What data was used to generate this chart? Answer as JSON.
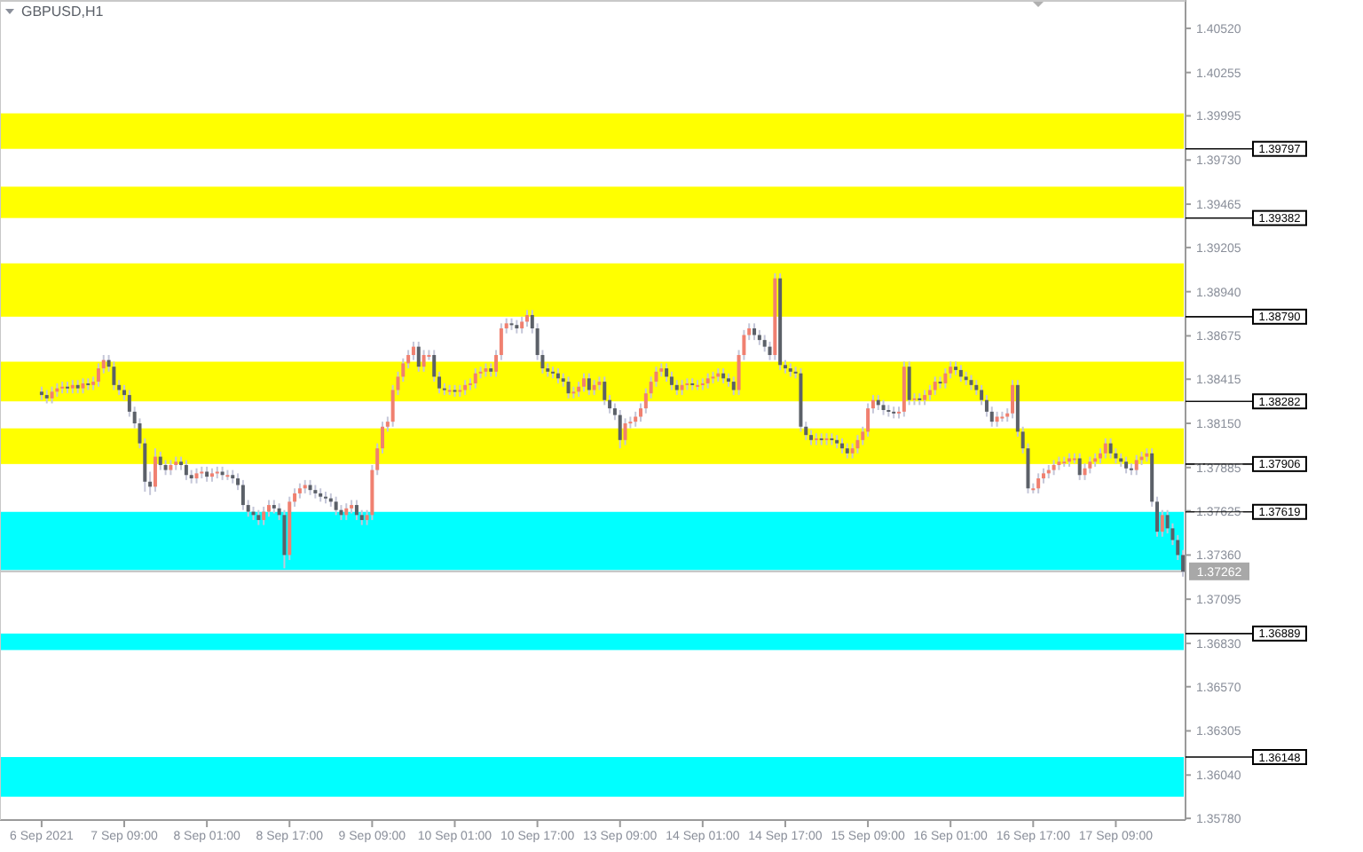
{
  "chart_data": {
    "type": "candlestick",
    "title": "GBPUSD,H1",
    "categories": [
      "6 Sep 2021",
      null,
      null,
      null,
      null,
      null,
      null,
      null,
      null,
      null,
      null,
      null,
      null,
      null,
      null,
      null,
      "7 Sep 09:00",
      null,
      null,
      null,
      null,
      null,
      null,
      null,
      null,
      null,
      null,
      null,
      null,
      null,
      null,
      null,
      "8 Sep 01:00",
      null,
      null,
      null,
      null,
      null,
      null,
      null,
      null,
      null,
      null,
      null,
      null,
      null,
      null,
      null,
      "8 Sep 17:00",
      null,
      null,
      null,
      null,
      null,
      null,
      null,
      null,
      null,
      null,
      null,
      null,
      null,
      null,
      null,
      "9 Sep 09:00",
      null,
      null,
      null,
      null,
      null,
      null,
      null,
      null,
      null,
      null,
      null,
      null,
      null,
      null,
      null,
      "10 Sep 01:00",
      null,
      null,
      null,
      null,
      null,
      null,
      null,
      null,
      null,
      null,
      null,
      null,
      null,
      null,
      null,
      "10 Sep 17:00",
      null,
      null,
      null,
      null,
      null,
      null,
      null,
      null,
      null,
      null,
      null,
      null,
      null,
      null,
      null,
      "13 Sep 09:00",
      null,
      null,
      null,
      null,
      null,
      null,
      null,
      null,
      null,
      null,
      null,
      null,
      null,
      null,
      null,
      "14 Sep 01:00",
      null,
      null,
      null,
      null,
      null,
      null,
      null,
      null,
      null,
      null,
      null,
      null,
      null,
      null,
      null,
      "14 Sep 17:00",
      null,
      null,
      null,
      null,
      null,
      null,
      null,
      null,
      null,
      null,
      null,
      null,
      null,
      null,
      null,
      "15 Sep 09:00",
      null,
      null,
      null,
      null,
      null,
      null,
      null,
      null,
      null,
      null,
      null,
      null,
      null,
      null,
      null,
      "16 Sep 01:00",
      null,
      null,
      null,
      null,
      null,
      null,
      null,
      null,
      null,
      null,
      null,
      null,
      null,
      null,
      null,
      "16 Sep 17:00",
      null,
      null,
      null,
      null,
      null,
      null,
      null,
      null,
      null,
      null,
      null,
      null,
      null,
      null,
      null,
      "17 Sep 09:00",
      null,
      null,
      null,
      null,
      null,
      null,
      null,
      null,
      null,
      null,
      null,
      null,
      null
    ],
    "ohlc": [
      [
        1.3834,
        1.3837,
        1.3829,
        1.3832
      ],
      [
        1.3832,
        1.3835,
        1.3827,
        1.383
      ],
      [
        1.383,
        1.3837,
        1.3827,
        1.3834
      ],
      [
        1.3834,
        1.3839,
        1.3831,
        1.3836
      ],
      [
        1.3836,
        1.384,
        1.3833,
        1.3837
      ],
      [
        1.3837,
        1.384,
        1.3833,
        1.3836
      ],
      [
        1.3836,
        1.3841,
        1.3833,
        1.3838
      ],
      [
        1.3838,
        1.3841,
        1.3833,
        1.3836
      ],
      [
        1.3836,
        1.3842,
        1.3833,
        1.3839
      ],
      [
        1.3839,
        1.3842,
        1.3835,
        1.3838
      ],
      [
        1.3838,
        1.3843,
        1.3835,
        1.384
      ],
      [
        1.384,
        1.3851,
        1.3837,
        1.3848
      ],
      [
        1.3848,
        1.3856,
        1.3845,
        1.3853
      ],
      [
        1.3853,
        1.3856,
        1.3846,
        1.3849
      ],
      [
        1.3849,
        1.3852,
        1.3835,
        1.3838
      ],
      [
        1.3838,
        1.3841,
        1.3832,
        1.3835
      ],
      [
        1.3835,
        1.3838,
        1.3829,
        1.3832
      ],
      [
        1.3832,
        1.3835,
        1.3819,
        1.3822
      ],
      [
        1.3822,
        1.3825,
        1.3812,
        1.3815
      ],
      [
        1.3815,
        1.3818,
        1.38,
        1.3803
      ],
      [
        1.3803,
        1.3806,
        1.3774,
        1.378
      ],
      [
        1.378,
        1.3786,
        1.3772,
        1.3777
      ],
      [
        1.3777,
        1.38,
        1.3774,
        1.3795
      ],
      [
        1.3795,
        1.3798,
        1.3787,
        1.379
      ],
      [
        1.379,
        1.3793,
        1.3784,
        1.3787
      ],
      [
        1.3787,
        1.3793,
        1.3784,
        1.379
      ],
      [
        1.379,
        1.3795,
        1.3787,
        1.3792
      ],
      [
        1.3792,
        1.3795,
        1.3787,
        1.379
      ],
      [
        1.379,
        1.3793,
        1.3781,
        1.3784
      ],
      [
        1.3784,
        1.3787,
        1.3779,
        1.3782
      ],
      [
        1.3782,
        1.3788,
        1.3779,
        1.3785
      ],
      [
        1.3785,
        1.3789,
        1.3782,
        1.3786
      ],
      [
        1.3786,
        1.3789,
        1.378,
        1.3783
      ],
      [
        1.3783,
        1.3788,
        1.378,
        1.3785
      ],
      [
        1.3785,
        1.3789,
        1.3782,
        1.3786
      ],
      [
        1.3786,
        1.3789,
        1.3781,
        1.3784
      ],
      [
        1.3784,
        1.3787,
        1.3781,
        1.3784
      ],
      [
        1.3784,
        1.3787,
        1.3779,
        1.3782
      ],
      [
        1.3782,
        1.3785,
        1.3775,
        1.3778
      ],
      [
        1.3778,
        1.3781,
        1.3763,
        1.3766
      ],
      [
        1.3766,
        1.3769,
        1.3759,
        1.3762
      ],
      [
        1.3762,
        1.3765,
        1.3757,
        1.376
      ],
      [
        1.376,
        1.3763,
        1.3754,
        1.3757
      ],
      [
        1.3757,
        1.3765,
        1.3754,
        1.3762
      ],
      [
        1.3762,
        1.3769,
        1.3759,
        1.3766
      ],
      [
        1.3766,
        1.3769,
        1.3761,
        1.3764
      ],
      [
        1.3764,
        1.3767,
        1.3757,
        1.376
      ],
      [
        1.376,
        1.3763,
        1.3728,
        1.3736
      ],
      [
        1.3736,
        1.3771,
        1.3733,
        1.3768
      ],
      [
        1.3768,
        1.3776,
        1.3765,
        1.3773
      ],
      [
        1.3773,
        1.3779,
        1.377,
        1.3776
      ],
      [
        1.3776,
        1.3781,
        1.3773,
        1.3778
      ],
      [
        1.3778,
        1.3781,
        1.3772,
        1.3775
      ],
      [
        1.3775,
        1.3778,
        1.377,
        1.3773
      ],
      [
        1.3773,
        1.3776,
        1.3768,
        1.3771
      ],
      [
        1.3771,
        1.3774,
        1.3767,
        1.377
      ],
      [
        1.377,
        1.3773,
        1.3765,
        1.3768
      ],
      [
        1.3768,
        1.3771,
        1.376,
        1.3763
      ],
      [
        1.3763,
        1.3766,
        1.3757,
        1.376
      ],
      [
        1.376,
        1.3767,
        1.3757,
        1.3764
      ],
      [
        1.3764,
        1.3769,
        1.3761,
        1.3766
      ],
      [
        1.3766,
        1.3769,
        1.3757,
        1.376
      ],
      [
        1.376,
        1.3763,
        1.3754,
        1.3757
      ],
      [
        1.3757,
        1.3763,
        1.3754,
        1.376
      ],
      [
        1.376,
        1.379,
        1.3757,
        1.3787
      ],
      [
        1.3787,
        1.3803,
        1.3784,
        1.38
      ],
      [
        1.38,
        1.3816,
        1.3797,
        1.3813
      ],
      [
        1.3813,
        1.3819,
        1.381,
        1.3816
      ],
      [
        1.3816,
        1.3838,
        1.3813,
        1.3835
      ],
      [
        1.3835,
        1.3846,
        1.3832,
        1.3843
      ],
      [
        1.3843,
        1.3854,
        1.384,
        1.3851
      ],
      [
        1.3851,
        1.3859,
        1.3848,
        1.3856
      ],
      [
        1.3856,
        1.3864,
        1.3853,
        1.3861
      ],
      [
        1.3861,
        1.3864,
        1.3846,
        1.3849
      ],
      [
        1.3849,
        1.3859,
        1.3846,
        1.3856
      ],
      [
        1.3856,
        1.3859,
        1.3853,
        1.3856
      ],
      [
        1.3856,
        1.3859,
        1.384,
        1.3843
      ],
      [
        1.3843,
        1.3846,
        1.3833,
        1.3836
      ],
      [
        1.3836,
        1.3839,
        1.3832,
        1.3835
      ],
      [
        1.3835,
        1.3838,
        1.3832,
        1.3835
      ],
      [
        1.3835,
        1.3838,
        1.3831,
        1.3834
      ],
      [
        1.3834,
        1.3838,
        1.3831,
        1.3835
      ],
      [
        1.3835,
        1.3841,
        1.3832,
        1.3838
      ],
      [
        1.3838,
        1.3842,
        1.3835,
        1.3839
      ],
      [
        1.3839,
        1.3848,
        1.3836,
        1.3845
      ],
      [
        1.3845,
        1.3849,
        1.3842,
        1.3846
      ],
      [
        1.3846,
        1.3851,
        1.3843,
        1.3848
      ],
      [
        1.3848,
        1.3851,
        1.3843,
        1.3846
      ],
      [
        1.3846,
        1.3859,
        1.3843,
        1.3856
      ],
      [
        1.3856,
        1.3875,
        1.3853,
        1.3872
      ],
      [
        1.3872,
        1.3878,
        1.3869,
        1.3875
      ],
      [
        1.3875,
        1.3878,
        1.3871,
        1.3874
      ],
      [
        1.3874,
        1.3877,
        1.3869,
        1.3872
      ],
      [
        1.3872,
        1.3879,
        1.3869,
        1.3876
      ],
      [
        1.3876,
        1.3883,
        1.3873,
        1.388
      ],
      [
        1.388,
        1.3883,
        1.3869,
        1.3872
      ],
      [
        1.3872,
        1.3875,
        1.3853,
        1.3856
      ],
      [
        1.3856,
        1.3859,
        1.3845,
        1.3848
      ],
      [
        1.3848,
        1.3851,
        1.3843,
        1.3846
      ],
      [
        1.3846,
        1.3849,
        1.3842,
        1.3845
      ],
      [
        1.3845,
        1.3848,
        1.3839,
        1.3842
      ],
      [
        1.3842,
        1.3845,
        1.3837,
        1.384
      ],
      [
        1.384,
        1.3843,
        1.383,
        1.3833
      ],
      [
        1.3833,
        1.3837,
        1.383,
        1.3834
      ],
      [
        1.3834,
        1.384,
        1.3831,
        1.3837
      ],
      [
        1.3837,
        1.3845,
        1.3834,
        1.3842
      ],
      [
        1.3842,
        1.3845,
        1.3832,
        1.3835
      ],
      [
        1.3835,
        1.3841,
        1.3832,
        1.3838
      ],
      [
        1.3838,
        1.3843,
        1.3835,
        1.384
      ],
      [
        1.384,
        1.3843,
        1.3826,
        1.3829
      ],
      [
        1.3829,
        1.3832,
        1.3821,
        1.3824
      ],
      [
        1.3824,
        1.3827,
        1.3817,
        1.382
      ],
      [
        1.382,
        1.3823,
        1.38,
        1.3805
      ],
      [
        1.3805,
        1.3818,
        1.3802,
        1.3815
      ],
      [
        1.3815,
        1.3819,
        1.3812,
        1.3816
      ],
      [
        1.3816,
        1.3822,
        1.3813,
        1.3819
      ],
      [
        1.3819,
        1.3827,
        1.3816,
        1.3824
      ],
      [
        1.3824,
        1.3836,
        1.3821,
        1.3833
      ],
      [
        1.3833,
        1.3843,
        1.383,
        1.384
      ],
      [
        1.384,
        1.3849,
        1.3837,
        1.3846
      ],
      [
        1.3846,
        1.3851,
        1.3843,
        1.3848
      ],
      [
        1.3848,
        1.3851,
        1.384,
        1.3843
      ],
      [
        1.3843,
        1.3846,
        1.3835,
        1.3838
      ],
      [
        1.3838,
        1.3841,
        1.3832,
        1.3835
      ],
      [
        1.3835,
        1.3841,
        1.3832,
        1.3838
      ],
      [
        1.3838,
        1.3842,
        1.3835,
        1.3839
      ],
      [
        1.3839,
        1.3842,
        1.3835,
        1.3838
      ],
      [
        1.3838,
        1.3841,
        1.3835,
        1.3838
      ],
      [
        1.3838,
        1.3842,
        1.3835,
        1.3839
      ],
      [
        1.3839,
        1.3845,
        1.3836,
        1.3842
      ],
      [
        1.3842,
        1.3846,
        1.3839,
        1.3843
      ],
      [
        1.3843,
        1.3848,
        1.384,
        1.3845
      ],
      [
        1.3845,
        1.3848,
        1.3839,
        1.3842
      ],
      [
        1.3842,
        1.3845,
        1.3837,
        1.384
      ],
      [
        1.384,
        1.3843,
        1.3832,
        1.3835
      ],
      [
        1.3835,
        1.3859,
        1.3832,
        1.3856
      ],
      [
        1.3856,
        1.3871,
        1.3853,
        1.3868
      ],
      [
        1.3868,
        1.3875,
        1.3865,
        1.3872
      ],
      [
        1.3872,
        1.3875,
        1.3865,
        1.3868
      ],
      [
        1.3868,
        1.3871,
        1.3862,
        1.3865
      ],
      [
        1.3865,
        1.3868,
        1.3858,
        1.3861
      ],
      [
        1.3861,
        1.3864,
        1.3853,
        1.3856
      ],
      [
        1.3856,
        1.3905,
        1.3853,
        1.3902
      ],
      [
        1.3902,
        1.3905,
        1.3847,
        1.385
      ],
      [
        1.385,
        1.3853,
        1.3845,
        1.3848
      ],
      [
        1.3848,
        1.3851,
        1.3843,
        1.3846
      ],
      [
        1.3846,
        1.3849,
        1.3842,
        1.3845
      ],
      [
        1.3845,
        1.3848,
        1.381,
        1.3813
      ],
      [
        1.3813,
        1.3816,
        1.3805,
        1.3808
      ],
      [
        1.3808,
        1.3811,
        1.3802,
        1.3805
      ],
      [
        1.3805,
        1.3809,
        1.3802,
        1.3806
      ],
      [
        1.3806,
        1.3809,
        1.3802,
        1.3805
      ],
      [
        1.3805,
        1.3809,
        1.3802,
        1.3806
      ],
      [
        1.3806,
        1.3809,
        1.3802,
        1.3805
      ],
      [
        1.3805,
        1.3808,
        1.38,
        1.3803
      ],
      [
        1.3803,
        1.3806,
        1.3797,
        1.38
      ],
      [
        1.38,
        1.3803,
        1.3794,
        1.3797
      ],
      [
        1.3797,
        1.3803,
        1.3794,
        1.38
      ],
      [
        1.38,
        1.3808,
        1.3797,
        1.3805
      ],
      [
        1.3805,
        1.3813,
        1.3802,
        1.381
      ],
      [
        1.381,
        1.3827,
        1.3807,
        1.3824
      ],
      [
        1.3824,
        1.3832,
        1.3821,
        1.3829
      ],
      [
        1.3829,
        1.3832,
        1.3823,
        1.3826
      ],
      [
        1.3826,
        1.3829,
        1.382,
        1.3823
      ],
      [
        1.3823,
        1.3826,
        1.3819,
        1.3822
      ],
      [
        1.3822,
        1.3825,
        1.3818,
        1.3821
      ],
      [
        1.3821,
        1.3825,
        1.3818,
        1.3822
      ],
      [
        1.3822,
        1.3852,
        1.3819,
        1.3849
      ],
      [
        1.3849,
        1.3852,
        1.3826,
        1.3829
      ],
      [
        1.3829,
        1.3833,
        1.3826,
        1.383
      ],
      [
        1.383,
        1.3833,
        1.3826,
        1.3829
      ],
      [
        1.3829,
        1.3835,
        1.3826,
        1.3832
      ],
      [
        1.3832,
        1.3838,
        1.3829,
        1.3835
      ],
      [
        1.3835,
        1.3843,
        1.3832,
        1.384
      ],
      [
        1.384,
        1.3843,
        1.3836,
        1.3839
      ],
      [
        1.3839,
        1.3848,
        1.3836,
        1.3845
      ],
      [
        1.3845,
        1.3852,
        1.3842,
        1.3849
      ],
      [
        1.3849,
        1.3852,
        1.3844,
        1.3847
      ],
      [
        1.3847,
        1.385,
        1.384,
        1.3843
      ],
      [
        1.3843,
        1.3846,
        1.3838,
        1.3841
      ],
      [
        1.3841,
        1.3844,
        1.3835,
        1.3838
      ],
      [
        1.3838,
        1.3841,
        1.3832,
        1.3835
      ],
      [
        1.3835,
        1.3838,
        1.3826,
        1.3829
      ],
      [
        1.3829,
        1.3832,
        1.3819,
        1.3822
      ],
      [
        1.3822,
        1.3825,
        1.3813,
        1.3816
      ],
      [
        1.3816,
        1.3822,
        1.3813,
        1.3819
      ],
      [
        1.3819,
        1.3822,
        1.3816,
        1.3819
      ],
      [
        1.3819,
        1.3824,
        1.3816,
        1.3821
      ],
      [
        1.3821,
        1.3841,
        1.3818,
        1.3838
      ],
      [
        1.3838,
        1.3841,
        1.3807,
        1.381
      ],
      [
        1.381,
        1.3813,
        1.3797,
        1.38
      ],
      [
        1.38,
        1.3803,
        1.3773,
        1.3776
      ],
      [
        1.3776,
        1.3779,
        1.3773,
        1.3776
      ],
      [
        1.3776,
        1.3785,
        1.3773,
        1.3782
      ],
      [
        1.3782,
        1.3788,
        1.3779,
        1.3785
      ],
      [
        1.3785,
        1.379,
        1.3782,
        1.3787
      ],
      [
        1.3787,
        1.3793,
        1.3784,
        1.379
      ],
      [
        1.379,
        1.3795,
        1.3787,
        1.3792
      ],
      [
        1.3792,
        1.3795,
        1.3789,
        1.3792
      ],
      [
        1.3792,
        1.3797,
        1.3789,
        1.3794
      ],
      [
        1.3794,
        1.3797,
        1.3791,
        1.3794
      ],
      [
        1.3794,
        1.3797,
        1.3781,
        1.3784
      ],
      [
        1.3784,
        1.3791,
        1.3781,
        1.3788
      ],
      [
        1.3788,
        1.3795,
        1.3785,
        1.3792
      ],
      [
        1.3792,
        1.3797,
        1.3789,
        1.3794
      ],
      [
        1.3794,
        1.38,
        1.3791,
        1.3797
      ],
      [
        1.3797,
        1.3806,
        1.3794,
        1.3803
      ],
      [
        1.3803,
        1.3806,
        1.3794,
        1.3797
      ],
      [
        1.3797,
        1.38,
        1.3791,
        1.3794
      ],
      [
        1.3794,
        1.3797,
        1.3789,
        1.3792
      ],
      [
        1.3792,
        1.3795,
        1.3785,
        1.3788
      ],
      [
        1.3788,
        1.3791,
        1.3784,
        1.3787
      ],
      [
        1.3787,
        1.3796,
        1.3784,
        1.3793
      ],
      [
        1.3793,
        1.3798,
        1.379,
        1.3795
      ],
      [
        1.3795,
        1.38,
        1.3792,
        1.3797
      ],
      [
        1.3797,
        1.38,
        1.3765,
        1.3768
      ],
      [
        1.3768,
        1.3771,
        1.3747,
        1.375
      ],
      [
        1.375,
        1.3763,
        1.3747,
        1.376
      ],
      [
        1.376,
        1.3763,
        1.3749,
        1.3752
      ],
      [
        1.3752,
        1.3755,
        1.3742,
        1.3745
      ],
      [
        1.3745,
        1.3748,
        1.3733,
        1.3736
      ],
      [
        1.3736,
        1.3739,
        1.3723,
        1.3726
      ]
    ],
    "ylim": [
      1.3577,
      1.4069
    ],
    "yticks": [
      {
        "value": 1.4052,
        "label": "1.40520"
      },
      1.40255,
      1.39995,
      {
        "value": 1.3973,
        "label": "1.39730"
      },
      1.39465,
      1.39205,
      {
        "value": 1.3894,
        "label": "1.38940"
      },
      1.38675,
      1.38415,
      {
        "value": 1.3815,
        "label": "1.38150"
      },
      1.37885,
      1.37625,
      {
        "value": 1.3736,
        "label": "1.37360"
      },
      1.37095,
      {
        "value": 1.3683,
        "label": "1.36830"
      },
      {
        "value": 1.3657,
        "label": "1.36570"
      },
      1.36305,
      {
        "value": 1.3604,
        "label": "1.36040"
      },
      {
        "value": 1.3578,
        "label": "1.35780"
      }
    ],
    "ref_lines": [
      {
        "axis": "y",
        "value": 1.37262,
        "label": "1.37262",
        "color": "#c0c0c0"
      }
    ],
    "bands": [
      {
        "axis": "y",
        "from": 1.4001,
        "to": 1.39797,
        "label": "1.39797",
        "color": "#ffff00"
      },
      {
        "axis": "y",
        "from": 1.3957,
        "to": 1.39382,
        "label": "1.39382",
        "color": "#ffff00"
      },
      {
        "axis": "y",
        "from": 1.3911,
        "to": 1.3879,
        "label": "1.38790",
        "color": "#ffff00"
      },
      {
        "axis": "y",
        "from": 1.3852,
        "to": 1.38282,
        "label": "1.38282",
        "color": "#ffff00"
      },
      {
        "axis": "y",
        "from": 1.3812,
        "to": 1.37906,
        "label": "1.37906",
        "color": "#ffff00"
      },
      {
        "axis": "y",
        "from": 1.3727,
        "to": 1.37619,
        "label": "1.37619",
        "color": "#00ffff"
      },
      {
        "axis": "y",
        "from": 1.3679,
        "to": 1.36889,
        "label": "1.36889",
        "color": "#00ffff"
      },
      {
        "axis": "y",
        "from": 1.3591,
        "to": 1.36148,
        "label": "1.36148",
        "color": "#00ffff"
      }
    ]
  }
}
